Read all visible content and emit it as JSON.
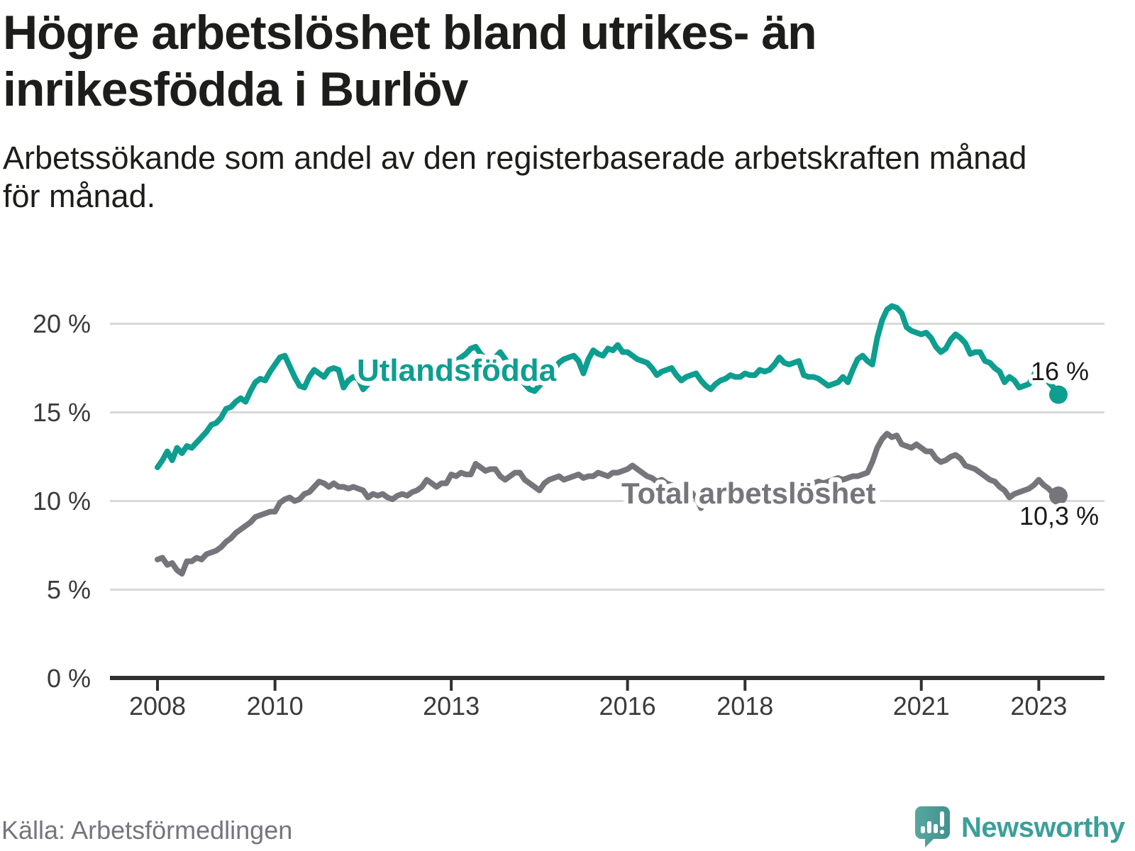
{
  "header": {
    "title_lines": [
      "Högre arbetslöshet bland utrikes- än",
      "inrikesfödda i Burlöv"
    ],
    "subtitle_lines": [
      "Arbetssökande som andel av den registerbaserade arbetskraften månad",
      "för månad."
    ]
  },
  "footer": {
    "source": "Källa: Arbetsförmedlingen",
    "brand": "Newsworthy"
  },
  "colors": {
    "foreign_born_line": "#0d9e90",
    "total_line": "#75757b",
    "end_label_text": "#1a1a1a",
    "axis": "#303030",
    "tick_label": "#3a3a3a",
    "gridline": "#d9d9d9",
    "brand_teal": "#3aa099",
    "logo_bubble_light": "#58a7a1",
    "logo_bubble_dark": "#41918d"
  },
  "chart_data": {
    "type": "line",
    "title": "Högre arbetslöshet bland utrikes- än inrikesfödda i Burlöv",
    "subtitle": "Arbetssökande som andel av den registerbaserade arbetskraften månad för månad.",
    "x_start_year": 2008,
    "points_per_month": 1,
    "x_end": "2023-05",
    "ylim": [
      0,
      21.5
    ],
    "grid": true,
    "y_ticks": [
      {
        "v": 20,
        "label": "20 %"
      },
      {
        "v": 15,
        "label": "15 %"
      },
      {
        "v": 10,
        "label": "10 %"
      },
      {
        "v": 5,
        "label": "5 %"
      },
      {
        "v": 0,
        "label": "0 %"
      }
    ],
    "x_ticks": [
      {
        "year": 2008,
        "label": "2008"
      },
      {
        "year": 2010,
        "label": "2010"
      },
      {
        "year": 2013,
        "label": "2013"
      },
      {
        "year": 2016,
        "label": "2016"
      },
      {
        "year": 2018,
        "label": "2018"
      },
      {
        "year": 2021,
        "label": "2021"
      },
      {
        "year": 2023,
        "label": "2023"
      }
    ],
    "series": [
      {
        "name": "Utlandsfödda",
        "color": "#0d9e90",
        "end_label": "16 %",
        "end_value": 16.0,
        "values": [
          11.9,
          12.3,
          12.8,
          12.3,
          13.0,
          12.7,
          13.1,
          13.0,
          13.3,
          13.6,
          13.9,
          14.3,
          14.4,
          14.7,
          15.2,
          15.3,
          15.6,
          15.8,
          15.6,
          16.2,
          16.7,
          16.9,
          16.8,
          17.3,
          17.7,
          18.1,
          18.2,
          17.6,
          17.0,
          16.5,
          16.4,
          17.0,
          17.4,
          17.2,
          17.0,
          17.4,
          17.5,
          17.4,
          16.4,
          16.8,
          17.0,
          16.9,
          16.3,
          16.6,
          16.8,
          17.0,
          17.1,
          17.2,
          17.2,
          17.1,
          17.3,
          17.4,
          17.3,
          17.5,
          17.4,
          17.6,
          17.7,
          17.6,
          17.8,
          17.7,
          17.8,
          17.9,
          18.1,
          18.3,
          18.6,
          18.7,
          18.3,
          18.0,
          17.9,
          18.1,
          18.4,
          18.0,
          17.6,
          17.2,
          16.9,
          16.6,
          16.3,
          16.2,
          16.5,
          16.8,
          17.1,
          17.4,
          17.8,
          18.0,
          18.1,
          18.2,
          17.9,
          17.2,
          18.0,
          18.5,
          18.3,
          18.2,
          18.6,
          18.5,
          18.8,
          18.4,
          18.4,
          18.2,
          18.0,
          17.9,
          17.8,
          17.5,
          17.1,
          17.3,
          17.4,
          17.5,
          17.1,
          16.8,
          17.0,
          17.1,
          17.2,
          16.8,
          16.5,
          16.3,
          16.6,
          16.8,
          16.9,
          17.1,
          17.0,
          17.0,
          17.2,
          17.1,
          17.1,
          17.4,
          17.3,
          17.4,
          17.7,
          18.1,
          17.8,
          17.7,
          17.8,
          17.9,
          17.1,
          17.0,
          17.0,
          16.9,
          16.7,
          16.5,
          16.6,
          16.7,
          17.0,
          16.7,
          17.4,
          18.0,
          18.2,
          17.9,
          17.7,
          19.2,
          20.2,
          20.8,
          21.0,
          20.9,
          20.6,
          19.8,
          19.6,
          19.5,
          19.4,
          19.5,
          19.2,
          18.7,
          18.4,
          18.6,
          19.1,
          19.4,
          19.2,
          18.9,
          18.3,
          18.4,
          18.4,
          17.9,
          17.8,
          17.5,
          17.3,
          16.7,
          17.0,
          16.8,
          16.4,
          16.5,
          16.6,
          17.1,
          17.7,
          17.2,
          16.7,
          16.4,
          16.0
        ]
      },
      {
        "name": "Total arbetslöshet",
        "color": "#75757b",
        "end_label": "10,3 %",
        "end_value": 10.3,
        "values": [
          6.7,
          6.8,
          6.4,
          6.5,
          6.1,
          5.9,
          6.6,
          6.6,
          6.8,
          6.7,
          7.0,
          7.1,
          7.2,
          7.4,
          7.7,
          7.9,
          8.2,
          8.4,
          8.6,
          8.8,
          9.1,
          9.2,
          9.3,
          9.4,
          9.4,
          9.9,
          10.1,
          10.2,
          10.0,
          10.1,
          10.4,
          10.5,
          10.8,
          11.1,
          11.0,
          10.8,
          11.0,
          10.8,
          10.8,
          10.7,
          10.8,
          10.7,
          10.6,
          10.2,
          10.4,
          10.3,
          10.4,
          10.2,
          10.1,
          10.3,
          10.4,
          10.3,
          10.5,
          10.6,
          10.8,
          11.2,
          11.0,
          10.8,
          11.0,
          11.0,
          11.5,
          11.4,
          11.6,
          11.5,
          11.5,
          12.1,
          11.9,
          11.7,
          11.8,
          11.8,
          11.4,
          11.2,
          11.4,
          11.6,
          11.6,
          11.2,
          11.0,
          10.8,
          10.6,
          11.0,
          11.2,
          11.3,
          11.4,
          11.2,
          11.3,
          11.4,
          11.5,
          11.3,
          11.4,
          11.4,
          11.6,
          11.5,
          11.4,
          11.6,
          11.6,
          11.7,
          11.8,
          12.0,
          11.8,
          11.6,
          11.4,
          11.3,
          11.1,
          11.2,
          11.0,
          10.9,
          10.8,
          10.8,
          10.7,
          10.5,
          10.2,
          9.6,
          10.2,
          10.5,
          10.3,
          10.4,
          10.5,
          10.4,
          10.5,
          10.4,
          10.4,
          10.3,
          10.4,
          10.5,
          10.4,
          10.5,
          10.6,
          10.7,
          10.6,
          10.7,
          10.8,
          10.9,
          11.0,
          10.9,
          11.0,
          11.1,
          11.0,
          11.1,
          11.2,
          11.3,
          11.2,
          11.3,
          11.4,
          11.4,
          11.5,
          11.6,
          12.2,
          13.0,
          13.5,
          13.8,
          13.6,
          13.7,
          13.2,
          13.1,
          13.0,
          13.2,
          13.0,
          12.8,
          12.8,
          12.4,
          12.2,
          12.3,
          12.5,
          12.6,
          12.4,
          12.0,
          11.9,
          11.8,
          11.6,
          11.4,
          11.2,
          11.1,
          10.8,
          10.6,
          10.2,
          10.4,
          10.5,
          10.6,
          10.7,
          10.9,
          11.2,
          10.9,
          10.7,
          10.4,
          10.3
        ]
      }
    ],
    "legend_position": "inline-labels",
    "xlabel": "",
    "ylabel": ""
  }
}
